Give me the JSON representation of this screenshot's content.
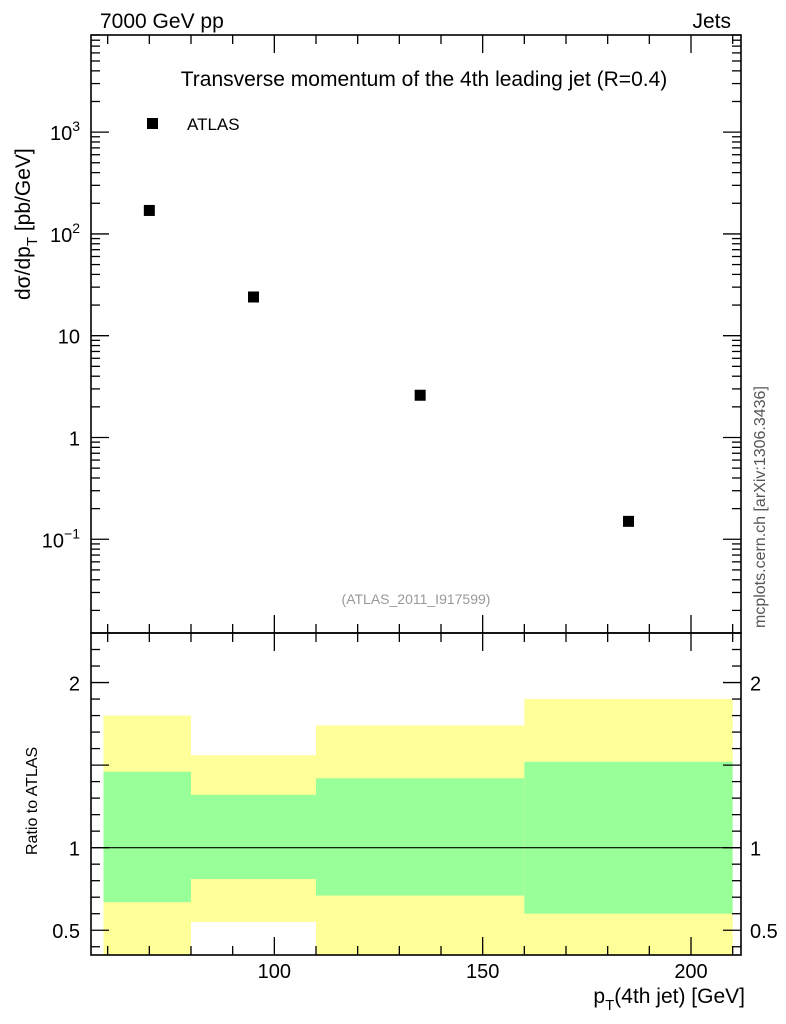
{
  "header": {
    "left": "7000 GeV pp",
    "right": "Jets"
  },
  "watermark": "mcplots.cern.ch [arXiv:1306.3436]",
  "analysis_id": "(ATLAS_2011_I917599)",
  "chart_data": [
    {
      "type": "scatter",
      "title": "Transverse momentum of the 4th leading jet (R=0.4)",
      "ylabel": "dσ/dp_T [pb/GeV]",
      "yscale": "log",
      "xlim": [
        56,
        212
      ],
      "ylim": [
        0.012,
        9000
      ],
      "legend": {
        "placement": "top-left",
        "entries": [
          "ATLAS"
        ]
      },
      "y_ticks": [
        {
          "value": 0.1,
          "label": "10",
          "exp": "−1"
        },
        {
          "value": 1,
          "label": "1",
          "exp": ""
        },
        {
          "value": 10,
          "label": "10",
          "exp": ""
        },
        {
          "value": 100,
          "label": "10",
          "exp": "2"
        },
        {
          "value": 1000,
          "label": "10",
          "exp": "3"
        }
      ],
      "series": [
        {
          "name": "ATLAS",
          "color": "#000000",
          "marker": "square",
          "x": [
            70,
            95,
            135,
            185
          ],
          "y": [
            170,
            24,
            2.6,
            0.15
          ]
        }
      ]
    },
    {
      "type": "area",
      "ylabel": "Ratio to ATLAS",
      "xlabel": "p_T(4th jet) [GeV]",
      "xlim": [
        56,
        212
      ],
      "ylim": [
        0.35,
        2.3
      ],
      "x_ticks": [
        {
          "value": 100,
          "label": "100"
        },
        {
          "value": 150,
          "label": "150"
        },
        {
          "value": 200,
          "label": "200"
        }
      ],
      "y_ticks": [
        {
          "value": 0.5,
          "label": "0.5"
        },
        {
          "value": 1,
          "label": "1"
        },
        {
          "value": 2,
          "label": "2"
        }
      ],
      "reference_line": 1,
      "bins": [
        {
          "lo": 59,
          "hi": 80,
          "inner": [
            0.67,
            1.46
          ],
          "outer": [
            0.35,
            1.8
          ]
        },
        {
          "lo": 80,
          "hi": 110,
          "inner": [
            0.81,
            1.32
          ],
          "outer": [
            0.55,
            1.56
          ]
        },
        {
          "lo": 110,
          "hi": 160,
          "inner": [
            0.71,
            1.42
          ],
          "outer": [
            0.35,
            1.74
          ]
        },
        {
          "lo": 160,
          "hi": 210,
          "inner": [
            0.6,
            1.52
          ],
          "outer": [
            0.35,
            1.9
          ]
        }
      ],
      "band_colors": {
        "inner": "#99ff99",
        "outer": "#ffff99"
      }
    }
  ]
}
